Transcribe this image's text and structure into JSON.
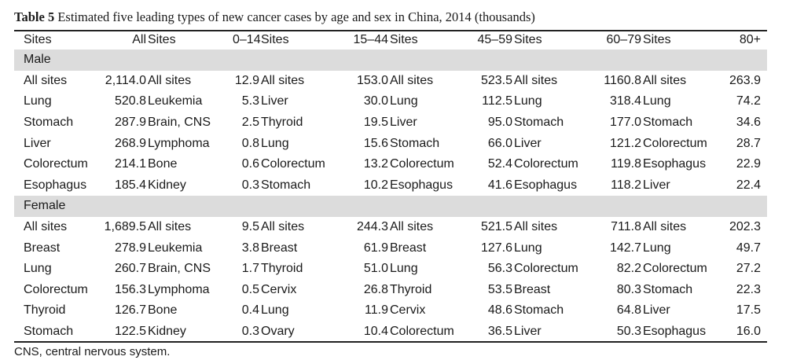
{
  "caption": {
    "label": "Table 5",
    "text": "Estimated five leading types of new cancer cases by age and sex in China, 2014 (thousands)"
  },
  "columns": [
    "Sites",
    "All",
    "Sites",
    "0–14",
    "Sites",
    "15–44",
    "Sites",
    "45–59",
    "Sites",
    "60–79",
    "Sites",
    "80+"
  ],
  "sections": [
    {
      "label": "Male",
      "rows": [
        [
          "All sites",
          "2,114.0",
          "All sites",
          "12.9",
          "All sites",
          "153.0",
          "All sites",
          "523.5",
          "All sites",
          "1160.8",
          "All sites",
          "263.9"
        ],
        [
          "Lung",
          "520.8",
          "Leukemia",
          "5.3",
          "Liver",
          "30.0",
          "Lung",
          "112.5",
          "Lung",
          "318.4",
          "Lung",
          "74.2"
        ],
        [
          "Stomach",
          "287.9",
          "Brain, CNS",
          "2.5",
          "Thyroid",
          "19.5",
          "Liver",
          "95.0",
          "Stomach",
          "177.0",
          "Stomach",
          "34.6"
        ],
        [
          "Liver",
          "268.9",
          "Lymphoma",
          "0.8",
          "Lung",
          "15.6",
          "Stomach",
          "66.0",
          "Liver",
          "121.2",
          "Colorectum",
          "28.7"
        ],
        [
          "Colorectum",
          "214.1",
          "Bone",
          "0.6",
          "Colorectum",
          "13.2",
          "Colorectum",
          "52.4",
          "Colorectum",
          "119.8",
          "Esophagus",
          "22.9"
        ],
        [
          "Esophagus",
          "185.4",
          "Kidney",
          "0.3",
          "Stomach",
          "10.2",
          "Esophagus",
          "41.6",
          "Esophagus",
          "118.2",
          "Liver",
          "22.4"
        ]
      ]
    },
    {
      "label": "Female",
      "rows": [
        [
          "All sites",
          "1,689.5",
          "All sites",
          "9.5",
          "All sites",
          "244.3",
          "All sites",
          "521.5",
          "All sites",
          "711.8",
          "All sites",
          "202.3"
        ],
        [
          "Breast",
          "278.9",
          "Leukemia",
          "3.8",
          "Breast",
          "61.9",
          "Breast",
          "127.6",
          "Lung",
          "142.7",
          "Lung",
          "49.7"
        ],
        [
          "Lung",
          "260.7",
          "Brain, CNS",
          "1.7",
          "Thyroid",
          "51.0",
          "Lung",
          "56.3",
          "Colorectum",
          "82.2",
          "Colorectum",
          "27.2"
        ],
        [
          "Colorectum",
          "156.3",
          "Lymphoma",
          "0.5",
          "Cervix",
          "26.8",
          "Thyroid",
          "53.5",
          "Breast",
          "80.3",
          "Stomach",
          "22.3"
        ],
        [
          "Thyroid",
          "126.7",
          "Bone",
          "0.4",
          "Lung",
          "11.9",
          "Cervix",
          "48.6",
          "Stomach",
          "64.8",
          "Liver",
          "17.5"
        ],
        [
          "Stomach",
          "122.5",
          "Kidney",
          "0.3",
          "Ovary",
          "10.4",
          "Colorectum",
          "36.5",
          "Liver",
          "50.3",
          "Esophagus",
          "16.0"
        ]
      ]
    }
  ],
  "footnote": "CNS, central nervous system."
}
